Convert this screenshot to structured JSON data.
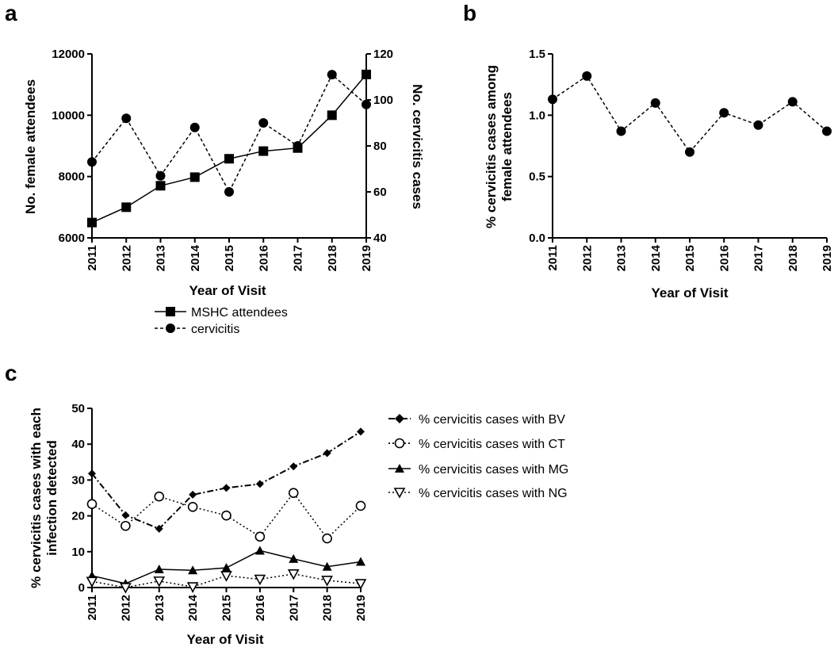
{
  "panels": {
    "a": "a",
    "b": "b",
    "c": "c"
  },
  "chart_data": [
    {
      "id": "a",
      "type": "line",
      "xlabel": "Year of Visit",
      "ylabel": "No. female attendees",
      "ylabel_right": "No. cervicitis cases",
      "x": [
        2011,
        2012,
        2013,
        2014,
        2015,
        2016,
        2017,
        2018,
        2019
      ],
      "ylim": [
        6000,
        12000
      ],
      "yticks": [
        6000,
        8000,
        10000,
        12000
      ],
      "ylim_right": [
        40,
        120
      ],
      "yticks_right": [
        40,
        60,
        80,
        100,
        120
      ],
      "series": [
        {
          "name": "MSHC attendees",
          "axis": "left",
          "marker": "square",
          "line": "solid",
          "values": [
            6500,
            7000,
            7700,
            7980,
            8580,
            8830,
            8930,
            10000,
            11330
          ]
        },
        {
          "name": "cervicitis",
          "axis": "right",
          "marker": "circle",
          "line": "dashed",
          "values": [
            73,
            92,
            67,
            88,
            60,
            90,
            80,
            111,
            98
          ]
        }
      ]
    },
    {
      "id": "b",
      "type": "line",
      "xlabel": "Year of Visit",
      "ylabel": "% cervicitis cases among female attendees",
      "ylabel_lines": [
        "% cervicitis cases among",
        "female attendees"
      ],
      "x": [
        2011,
        2012,
        2013,
        2014,
        2015,
        2016,
        2017,
        2018,
        2019
      ],
      "ylim": [
        0,
        1.5
      ],
      "yticks": [
        "0.0",
        "0.5",
        "1.0",
        "1.5"
      ],
      "series": [
        {
          "name": "% cervicitis",
          "marker": "circle",
          "line": "dashed",
          "values": [
            1.13,
            1.32,
            0.87,
            1.1,
            0.7,
            1.02,
            0.92,
            1.11,
            0.87
          ]
        }
      ]
    },
    {
      "id": "c",
      "type": "line",
      "xlabel": "Year of Visit",
      "ylabel": "% cervicitis cases with each infection detected",
      "ylabel_lines": [
        "% cervicitis cases with each",
        "infection detected"
      ],
      "x": [
        2011,
        2012,
        2013,
        2014,
        2015,
        2016,
        2017,
        2018,
        2019
      ],
      "ylim": [
        0,
        50
      ],
      "yticks": [
        0,
        10,
        20,
        30,
        40,
        50
      ],
      "series": [
        {
          "name": "% cervicitis cases with BV",
          "marker": "diamond",
          "line": "dashdot",
          "values": [
            31.8,
            20.2,
            16.4,
            25.9,
            27.8,
            28.9,
            33.8,
            37.5,
            43.5
          ]
        },
        {
          "name": "% cervicitis cases with CT",
          "marker": "open-circle",
          "line": "dotted",
          "values": [
            23.3,
            17.2,
            25.4,
            22.5,
            20.1,
            14.2,
            26.4,
            13.7,
            22.8
          ]
        },
        {
          "name": "% cervicitis cases with MG",
          "marker": "triangle",
          "line": "solid",
          "values": [
            3.3,
            1.1,
            5.1,
            4.8,
            5.5,
            10.3,
            8.0,
            5.8,
            7.2
          ]
        },
        {
          "name": "% cervicitis cases with NG",
          "marker": "open-triangle-down",
          "line": "dotted",
          "values": [
            1.7,
            0.0,
            1.8,
            0.2,
            3.3,
            2.3,
            3.8,
            2.0,
            1.1
          ]
        }
      ]
    }
  ]
}
